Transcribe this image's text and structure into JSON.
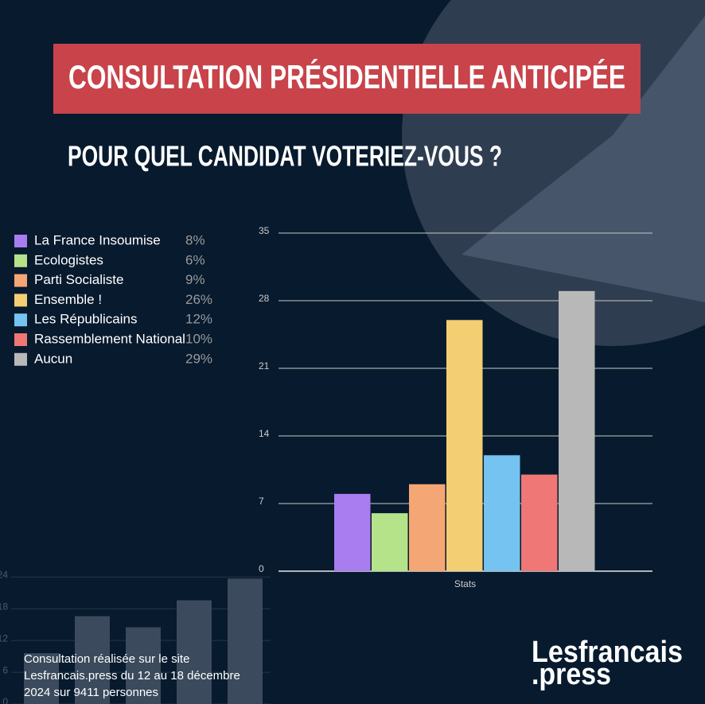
{
  "title": "CONSULTATION PRÉSIDENTIELLE ANTICIPÉE",
  "subtitle": "POUR QUEL CANDIDAT VOTERIEZ-VOUS ?",
  "footer": [
    " Consultation réalisée sur le site",
    "Lesfrancais.press du 12 au 18 décembre",
    "2024 sur 9411 personnes"
  ],
  "logo": [
    "Lesfrancais",
    ".press"
  ],
  "chart_data": [
    {
      "type": "bar",
      "categories": [
        "Stats"
      ],
      "ylim": [
        0,
        35
      ],
      "yticks": [
        0,
        7,
        14,
        21,
        28,
        35
      ],
      "grid": true,
      "series": [
        {
          "name": "La France Insoumise",
          "color": "#a97cf0",
          "values": [
            8
          ],
          "value_labels": [
            "8%"
          ]
        },
        {
          "name": "Ecologistes",
          "color": "#b5e389",
          "values": [
            6
          ],
          "value_labels": [
            "6%"
          ]
        },
        {
          "name": "Parti Socialiste",
          "color": "#f4a674",
          "values": [
            9
          ],
          "value_labels": [
            "9%"
          ]
        },
        {
          "name": "Ensemble !",
          "color": "#f3ce73",
          "values": [
            26
          ],
          "value_labels": [
            "26%"
          ]
        },
        {
          "name": "Les Républicains",
          "color": "#75c3f0",
          "values": [
            12
          ],
          "value_labels": [
            "12%"
          ]
        },
        {
          "name": "Rassemblement National",
          "color": "#ef7775",
          "values": [
            10
          ],
          "value_labels": [
            "10%"
          ]
        },
        {
          "name": "Aucun",
          "color": "#b8b8b8",
          "values": [
            29
          ],
          "value_labels": [
            "29%"
          ]
        }
      ]
    },
    {
      "type": "bar",
      "ylim": [
        0,
        24.5
      ],
      "yticks": [
        0,
        6,
        12,
        18,
        24
      ],
      "grid": true,
      "color": "#3b4a5c",
      "values": [
        9.6,
        16.6,
        14.5,
        19.6,
        23.7
      ]
    }
  ]
}
